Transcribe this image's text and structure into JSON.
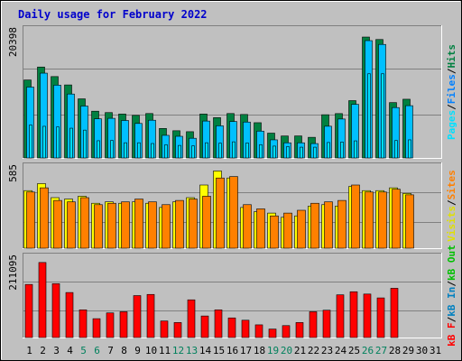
{
  "title": "Daily usage for February 2022",
  "colors": {
    "hits": "#008040",
    "files": "#00c0ff",
    "pages": "#00e0ff",
    "visits": "#ffff00",
    "sites": "#ff8000",
    "kbin": "#0080c0",
    "kbout": "#00c000",
    "kbf": "#ff0000",
    "weekend": "#00805c",
    "weekday": "#000000",
    "title": "#0000cc"
  },
  "legends": {
    "top": [
      {
        "text": "Pages",
        "color": "#00e0ff"
      },
      {
        "text": "/",
        "color": "#000000"
      },
      {
        "text": "Files",
        "color": "#0080ff"
      },
      {
        "text": "/",
        "color": "#000000"
      },
      {
        "text": "Hits",
        "color": "#008040"
      }
    ],
    "middle": [
      {
        "text": "Visits",
        "color": "#e0e000"
      },
      {
        "text": "/",
        "color": "#000000"
      },
      {
        "text": "Sites",
        "color": "#ff8000"
      }
    ],
    "bottom": [
      {
        "text": "kB F",
        "color": "#ff0000"
      },
      {
        "text": "/",
        "color": "#000000"
      },
      {
        "text": "kB In",
        "color": "#0080c0"
      },
      {
        "text": "/",
        "color": "#000000"
      },
      {
        "text": "kB Out",
        "color": "#00c000"
      }
    ]
  },
  "chart_data": [
    {
      "type": "bar",
      "max_label": "20398",
      "ylim": [
        0,
        20398
      ],
      "series": [
        {
          "name": "Hits",
          "values": [
            12320,
            14370,
            12860,
            11540,
            9340,
            7390,
            7170,
            6940,
            6730,
            7020,
            4660,
            4300,
            4150,
            6940,
            6370,
            7020,
            6870,
            5570,
            3920,
            3470,
            3480,
            3260,
            6830,
            7010,
            9060,
            19110,
            18720,
            8750,
            9280
          ]
        },
        {
          "name": "Files",
          "values": [
            11200,
            13400,
            11500,
            10100,
            8200,
            6180,
            6260,
            5920,
            5450,
            5960,
            3570,
            3420,
            3110,
            5830,
            5080,
            5760,
            5670,
            4240,
            2860,
            2390,
            2390,
            2270,
            5010,
            6150,
            8470,
            18540,
            17940,
            7960,
            8260
          ]
        },
        {
          "name": "Pages",
          "values": [
            5200,
            5000,
            4900,
            4700,
            4400,
            2720,
            2760,
            2400,
            2400,
            2280,
            2080,
            1980,
            1900,
            2400,
            2330,
            2550,
            2360,
            2100,
            1870,
            1790,
            1700,
            1700,
            2440,
            2510,
            2700,
            13300,
            13300,
            2750,
            2860
          ]
        }
      ]
    },
    {
      "type": "bar",
      "max_label": "585",
      "ylim": [
        0,
        585
      ],
      "series": [
        {
          "name": "Visits",
          "values": [
            410,
            460,
            360,
            350,
            370,
            320,
            330,
            320,
            330,
            320,
            290,
            330,
            360,
            450,
            550,
            500,
            290,
            260,
            250,
            220,
            230,
            300,
            310,
            300,
            440,
            410,
            410,
            430,
            390
          ]
        },
        {
          "name": "Sites",
          "values": [
            400,
            430,
            340,
            330,
            360,
            310,
            320,
            330,
            350,
            330,
            310,
            340,
            350,
            370,
            500,
            510,
            310,
            280,
            230,
            250,
            270,
            320,
            330,
            340,
            450,
            400,
            400,
            420,
            380
          ]
        }
      ]
    },
    {
      "type": "bar",
      "max_label": "211095",
      "ylim": [
        0,
        211095
      ],
      "series": [
        {
          "name": "kB F",
          "values": [
            138000,
            195000,
            140000,
            117000,
            72000,
            49000,
            64000,
            67000,
            109000,
            112000,
            43000,
            39000,
            98000,
            56000,
            72000,
            51000,
            45000,
            33000,
            22000,
            31000,
            39000,
            67000,
            71000,
            111000,
            119000,
            113000,
            103000,
            128000,
            0
          ]
        }
      ]
    }
  ],
  "days": [
    "1",
    "2",
    "3",
    "4",
    "5",
    "6",
    "7",
    "8",
    "9",
    "10",
    "11",
    "12",
    "13",
    "14",
    "15",
    "16",
    "17",
    "18",
    "19",
    "20",
    "21",
    "22",
    "23",
    "24",
    "25",
    "26",
    "27",
    "28",
    "29",
    "30",
    "31"
  ],
  "weekend_days": [
    5,
    6,
    12,
    13,
    19,
    20,
    26,
    27
  ]
}
